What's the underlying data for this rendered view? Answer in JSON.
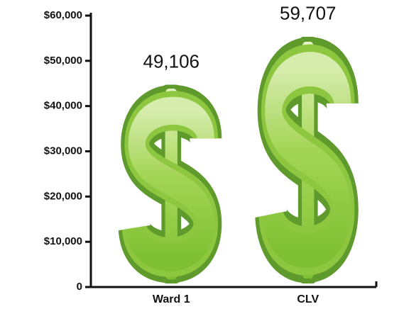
{
  "chart_data": {
    "type": "pictograph",
    "categories": [
      "Ward 1",
      "CLV"
    ],
    "values": [
      49106,
      59707
    ],
    "value_labels": [
      "49,106",
      "59,707"
    ],
    "color": "#8dc63f",
    "ylim": [
      0,
      60000
    ],
    "yticks": [
      0,
      {
        "value": 10000,
        "label": "$10,000"
      },
      {
        "value": 20000,
        "label": "$20,000"
      },
      {
        "value": 30000,
        "label": "$30,000"
      },
      {
        "value": 40000,
        "label": "$40,000"
      },
      {
        "value": 50000,
        "label": "$50,000"
      },
      {
        "value": 60000,
        "label": "$60,000"
      }
    ]
  }
}
